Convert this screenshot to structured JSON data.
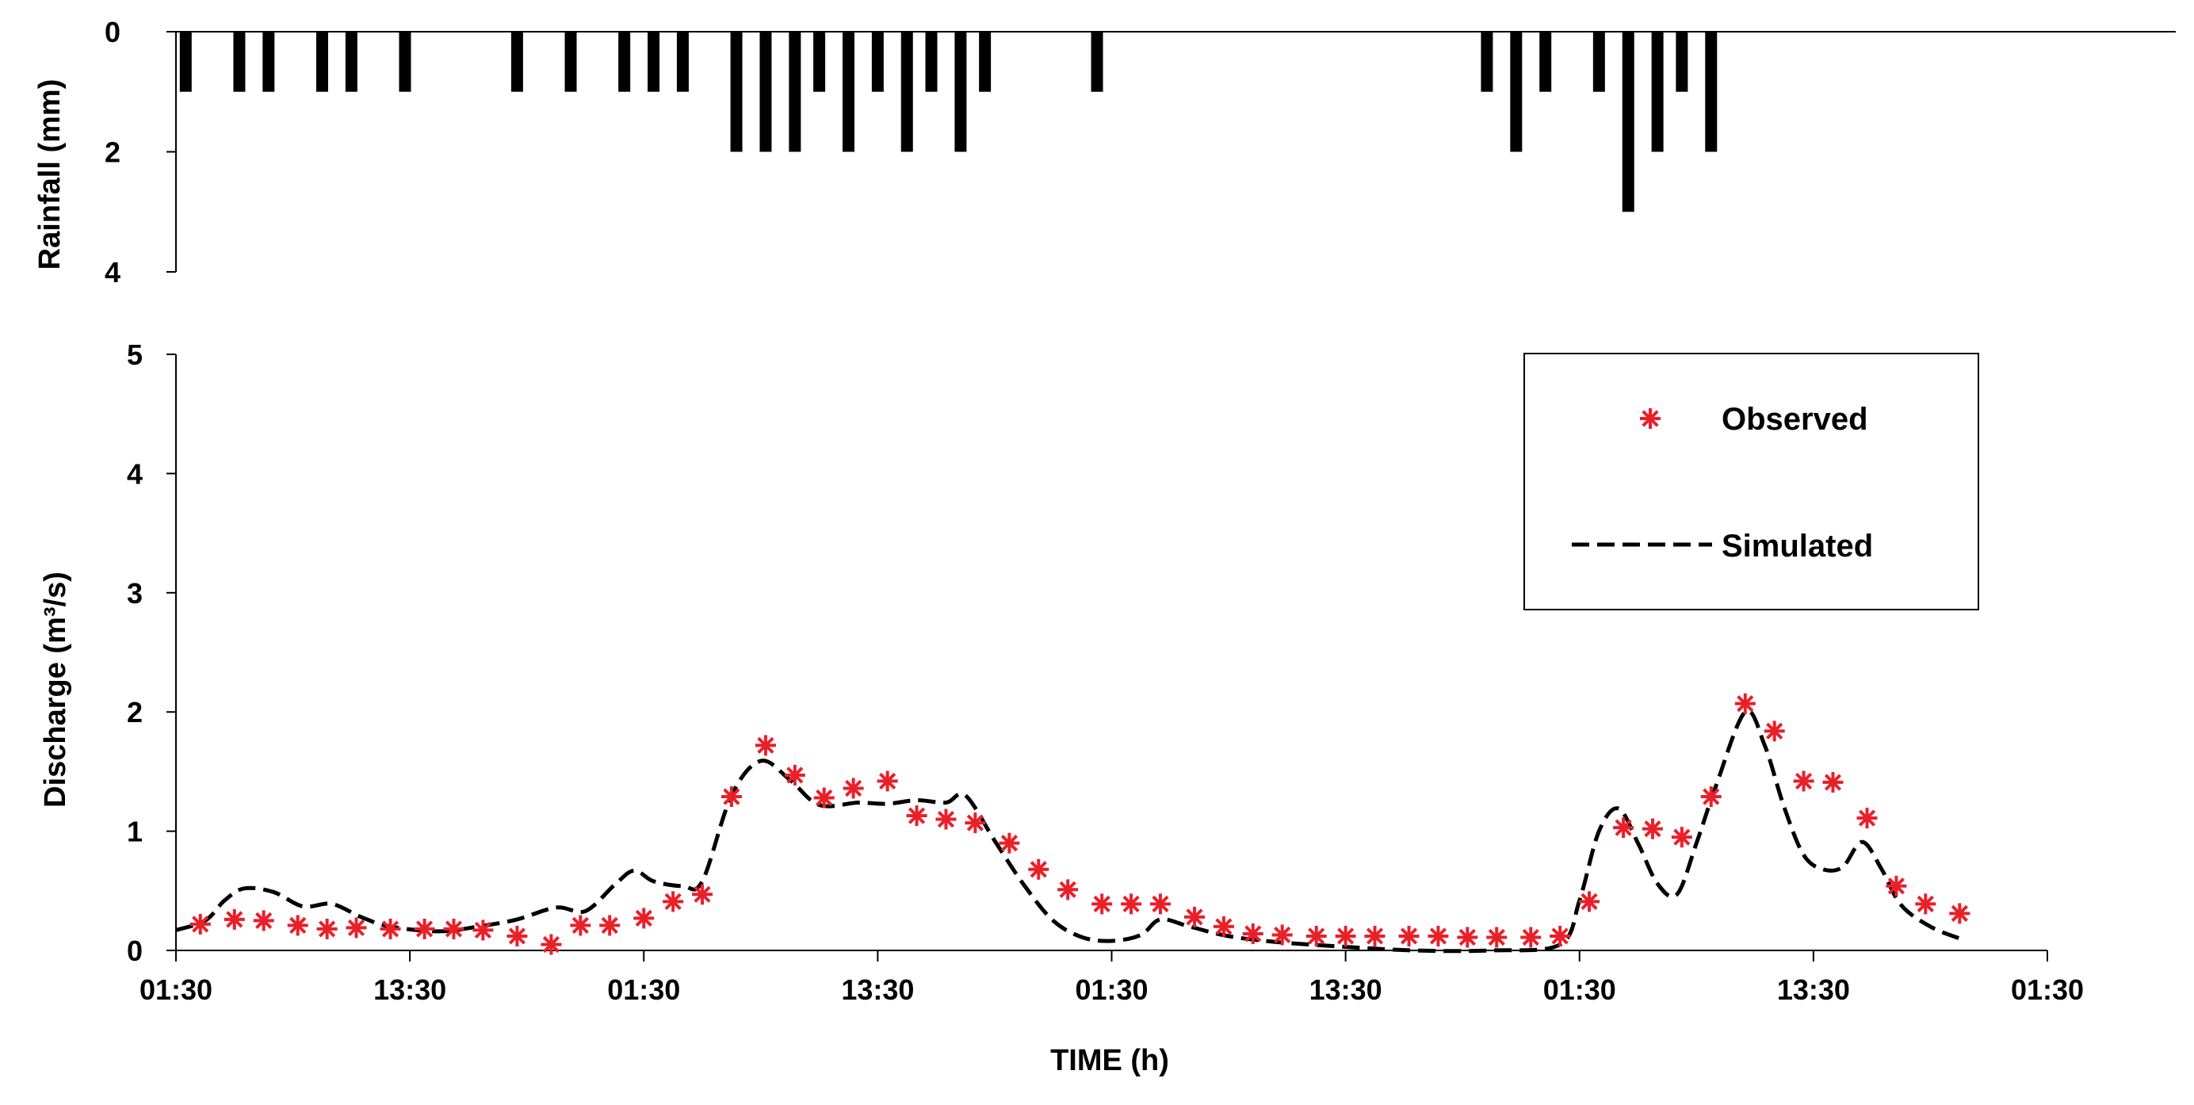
{
  "chart_data": [
    {
      "type": "bar",
      "orientation": "inverted",
      "ylabel": "Rainfall (mm)",
      "ylim": [
        0,
        4
      ],
      "yticks": [
        "0",
        "2",
        "4"
      ],
      "xlim": [
        0,
        192
      ],
      "x": [
        1,
        6.5,
        9.5,
        15,
        18,
        23.5,
        35,
        40.5,
        46,
        49,
        52,
        57.5,
        60.5,
        63.5,
        66,
        69,
        72,
        75,
        77.5,
        80.5,
        83,
        94.5,
        134.5,
        137.5,
        140.5,
        146,
        149,
        152,
        154.5,
        157.5
      ],
      "values": [
        1,
        1,
        1,
        1,
        1,
        1,
        1,
        1,
        1,
        1,
        1,
        2,
        2,
        2,
        1,
        2,
        1,
        2,
        1,
        2,
        1,
        1,
        1,
        2,
        1,
        1,
        3,
        2,
        1,
        2
      ],
      "color": "#000000"
    },
    {
      "type": "line",
      "xlabel": "TIME (h)",
      "ylabel": "Discharge (m³/s)",
      "ylim": [
        0,
        5
      ],
      "yticks": [
        "0",
        "1",
        "2",
        "3",
        "4",
        "5"
      ],
      "xlim": [
        0,
        192
      ],
      "xticks": [
        {
          "x": 0,
          "label": "01:30"
        },
        {
          "x": 24,
          "label": "13:30"
        },
        {
          "x": 48,
          "label": "01:30"
        },
        {
          "x": 72,
          "label": "13:30"
        },
        {
          "x": 96,
          "label": "01:30"
        },
        {
          "x": 120,
          "label": "13:30"
        },
        {
          "x": 144,
          "label": "01:30"
        },
        {
          "x": 168,
          "label": "13:30"
        },
        {
          "x": 192,
          "label": "01:30"
        }
      ],
      "legend": {
        "position": "top-right"
      },
      "series": [
        {
          "name": "Observed",
          "style": "marker-asterisk",
          "color": "#e8202a",
          "points": [
            [
              2.5,
              0.22
            ],
            [
              6,
              0.26
            ],
            [
              9,
              0.25
            ],
            [
              12.5,
              0.21
            ],
            [
              15.5,
              0.18
            ],
            [
              18.5,
              0.19
            ],
            [
              22,
              0.18
            ],
            [
              25.5,
              0.18
            ],
            [
              28.5,
              0.18
            ],
            [
              31.5,
              0.17
            ],
            [
              35,
              0.12
            ],
            [
              38.5,
              0.05
            ],
            [
              41.5,
              0.21
            ],
            [
              44.5,
              0.21
            ],
            [
              48,
              0.27
            ],
            [
              51,
              0.41
            ],
            [
              54,
              0.47
            ],
            [
              57,
              1.29
            ],
            [
              60.5,
              1.72
            ],
            [
              63.5,
              1.47
            ],
            [
              66.5,
              1.28
            ],
            [
              69.5,
              1.36
            ],
            [
              73,
              1.42
            ],
            [
              76,
              1.13
            ],
            [
              79,
              1.1
            ],
            [
              82,
              1.07
            ],
            [
              85.5,
              0.9
            ],
            [
              88.5,
              0.68
            ],
            [
              91.5,
              0.51
            ],
            [
              95,
              0.39
            ],
            [
              98,
              0.39
            ],
            [
              101,
              0.39
            ],
            [
              104.5,
              0.28
            ],
            [
              107.5,
              0.2
            ],
            [
              110.5,
              0.14
            ],
            [
              113.5,
              0.13
            ],
            [
              117,
              0.12
            ],
            [
              120,
              0.12
            ],
            [
              123,
              0.12
            ],
            [
              126.5,
              0.12
            ],
            [
              129.5,
              0.12
            ],
            [
              132.5,
              0.11
            ],
            [
              135.5,
              0.11
            ],
            [
              139,
              0.11
            ],
            [
              142,
              0.12
            ],
            [
              145,
              0.41
            ],
            [
              148.5,
              1.03
            ],
            [
              151.5,
              1.02
            ],
            [
              154.5,
              0.95
            ],
            [
              157.5,
              1.29
            ],
            [
              161,
              2.07
            ],
            [
              164,
              1.84
            ],
            [
              167,
              1.42
            ],
            [
              170,
              1.41
            ],
            [
              173.5,
              1.11
            ],
            [
              176.5,
              0.54
            ],
            [
              179.5,
              0.39
            ],
            [
              183,
              0.31
            ]
          ]
        },
        {
          "name": "Simulated",
          "style": "dashed-line",
          "color": "#000000",
          "points": [
            [
              0,
              0.17
            ],
            [
              3,
              0.25
            ],
            [
              5,
              0.42
            ],
            [
              7,
              0.52
            ],
            [
              10,
              0.49
            ],
            [
              13,
              0.37
            ],
            [
              16,
              0.39
            ],
            [
              19,
              0.28
            ],
            [
              22,
              0.2
            ],
            [
              27,
              0.16
            ],
            [
              31,
              0.2
            ],
            [
              35,
              0.26
            ],
            [
              39,
              0.36
            ],
            [
              42,
              0.33
            ],
            [
              45,
              0.55
            ],
            [
              47,
              0.67
            ],
            [
              49,
              0.58
            ],
            [
              52,
              0.54
            ],
            [
              54,
              0.58
            ],
            [
              57,
              1.3
            ],
            [
              60,
              1.59
            ],
            [
              63,
              1.43
            ],
            [
              66,
              1.22
            ],
            [
              70,
              1.24
            ],
            [
              73,
              1.23
            ],
            [
              76,
              1.26
            ],
            [
              79,
              1.24
            ],
            [
              81,
              1.3
            ],
            [
              84,
              0.92
            ],
            [
              87,
              0.55
            ],
            [
              90,
              0.25
            ],
            [
              93,
              0.11
            ],
            [
              96,
              0.08
            ],
            [
              99,
              0.13
            ],
            [
              101,
              0.26
            ],
            [
              104,
              0.2
            ],
            [
              108,
              0.12
            ],
            [
              113,
              0.07
            ],
            [
              120,
              0.03
            ],
            [
              127,
              0.0
            ],
            [
              135,
              0.0
            ],
            [
              142,
              0.05
            ],
            [
              144,
              0.42
            ],
            [
              146,
              1.0
            ],
            [
              148,
              1.19
            ],
            [
              150,
              0.9
            ],
            [
              152,
              0.56
            ],
            [
              154,
              0.47
            ],
            [
              156,
              0.9
            ],
            [
              158,
              1.38
            ],
            [
              161,
              2.0
            ],
            [
              163,
              1.72
            ],
            [
              165,
              1.2
            ],
            [
              167,
              0.8
            ],
            [
              169,
              0.68
            ],
            [
              171,
              0.7
            ],
            [
              173,
              0.91
            ],
            [
              175,
              0.68
            ],
            [
              177,
              0.38
            ],
            [
              180,
              0.2
            ],
            [
              183,
              0.1
            ]
          ]
        }
      ]
    }
  ]
}
